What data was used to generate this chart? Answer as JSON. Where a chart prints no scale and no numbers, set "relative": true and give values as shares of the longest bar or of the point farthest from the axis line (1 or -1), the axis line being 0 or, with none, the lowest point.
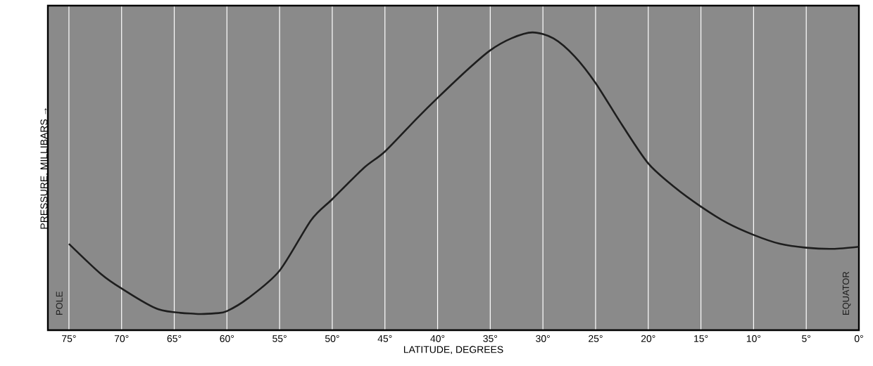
{
  "chart_data": {
    "type": "line",
    "relative": true,
    "xlabel": "LATITUDE, DEGREES",
    "ylabel": "PRESSURE, MILLIBARS →",
    "x": [
      75,
      72,
      70,
      66.5,
      63,
      61,
      60,
      58,
      55,
      52,
      50,
      47,
      45,
      42,
      40,
      37,
      35,
      33,
      31,
      29,
      27,
      25,
      22.5,
      20,
      17.5,
      15,
      12.5,
      10,
      7.5,
      5,
      2.5,
      0
    ],
    "series": [
      {
        "color": "#1e1e1e",
        "values": [
          0.29,
          0.19,
          0.14,
          0.07,
          0.055,
          0.057,
          0.064,
          0.107,
          0.2,
          0.37,
          0.44,
          0.545,
          0.6,
          0.71,
          0.78,
          0.88,
          0.94,
          0.98,
          1,
          0.98,
          0.92,
          0.83,
          0.69,
          0.56,
          0.48,
          0.415,
          0.36,
          0.32,
          0.29,
          0.277,
          0.273,
          0.28
        ]
      }
    ],
    "xlim": [
      77,
      0
    ],
    "xticks": [
      {
        "value": 75,
        "label": "75°"
      },
      {
        "value": 70,
        "label": "70°"
      },
      {
        "value": 65,
        "label": "65°"
      },
      {
        "value": 60,
        "label": "60°"
      },
      {
        "value": 55,
        "label": "55°"
      },
      {
        "value": 50,
        "label": "50°"
      },
      {
        "value": 45,
        "label": "45°"
      },
      {
        "value": 40,
        "label": "40°"
      },
      {
        "value": 35,
        "label": "35°"
      },
      {
        "value": 30,
        "label": "30°"
      },
      {
        "value": 25,
        "label": "25°"
      },
      {
        "value": 20,
        "label": "20°"
      },
      {
        "value": 15,
        "label": "15°"
      },
      {
        "value": 10,
        "label": "10°"
      },
      {
        "value": 5,
        "label": "5°"
      },
      {
        "value": 0,
        "label": "0°"
      }
    ],
    "grid": "x",
    "tick_labels": "x",
    "marker": "none",
    "line_style": "solid",
    "annotations": [
      "POLE",
      "EQUATOR"
    ]
  }
}
